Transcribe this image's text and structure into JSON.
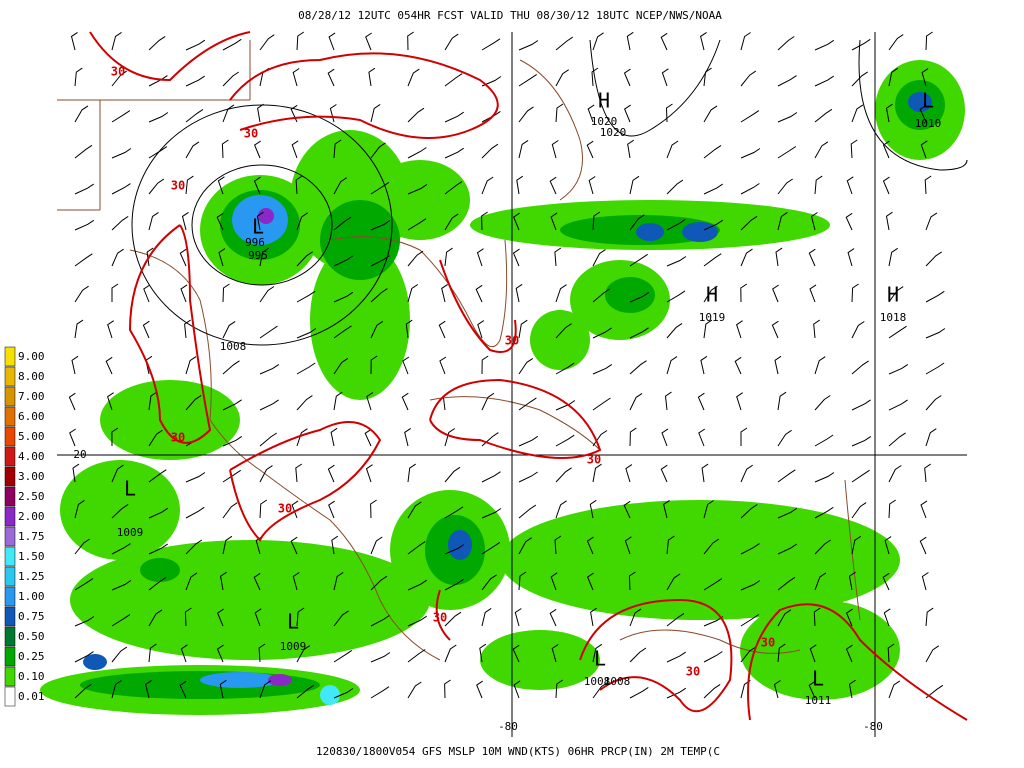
{
  "header": {
    "title": "08/28/12 12UTC  054HR  FCST VALID THU 08/30/12 18UTC  NCEP/NWS/NOAA"
  },
  "footer": {
    "caption": "120830/1800V054 GFS MSLP 10M WND(KTS) 06HR PRCP(IN) 2M TEMP(C"
  },
  "legend": [
    {
      "label": "9.00",
      "color": "#f5e000"
    },
    {
      "label": "8.00",
      "color": "#e8b800"
    },
    {
      "label": "7.00",
      "color": "#d89400"
    },
    {
      "label": "6.00",
      "color": "#e07000"
    },
    {
      "label": "5.00",
      "color": "#e84800"
    },
    {
      "label": "4.00",
      "color": "#d01818"
    },
    {
      "label": "3.00",
      "color": "#a00000"
    },
    {
      "label": "2.50",
      "color": "#900060"
    },
    {
      "label": "2.00",
      "color": "#8a28c8"
    },
    {
      "label": "1.75",
      "color": "#9a6ad8"
    },
    {
      "label": "1.50",
      "color": "#40e8f8"
    },
    {
      "label": "1.25",
      "color": "#28c8f0"
    },
    {
      "label": "1.00",
      "color": "#2898f0"
    },
    {
      "label": "0.75",
      "color": "#1058b8"
    },
    {
      "label": "0.50",
      "color": "#007830"
    },
    {
      "label": "0.25",
      "color": "#00a800"
    },
    {
      "label": "0.10",
      "color": "#40d800"
    },
    {
      "label": "0.01",
      "color": "#ffffff"
    }
  ],
  "pressure_centers": [
    {
      "letter": "H",
      "values": [
        "1020",
        "1020"
      ]
    },
    {
      "letter": "H",
      "values": [
        "1019"
      ]
    },
    {
      "letter": "H",
      "values": [
        "1018"
      ]
    },
    {
      "letter": "L",
      "values": [
        "1010"
      ]
    },
    {
      "letter": "L",
      "values": [
        "996",
        "995"
      ]
    },
    {
      "letter": "L",
      "values": [
        "1009"
      ]
    },
    {
      "letter": "L",
      "values": [
        "1009"
      ]
    },
    {
      "letter": "L",
      "values": [
        "1008",
        "1008"
      ]
    },
    {
      "letter": "L",
      "values": [
        "1011"
      ]
    }
  ],
  "isobar_labels": [
    "1008"
  ],
  "contour_labels": [
    "30",
    "30",
    "30",
    "30",
    "30",
    "30",
    "30",
    "30",
    "30",
    "30"
  ],
  "grid_labels": [
    "20",
    "-80",
    "-80"
  ]
}
